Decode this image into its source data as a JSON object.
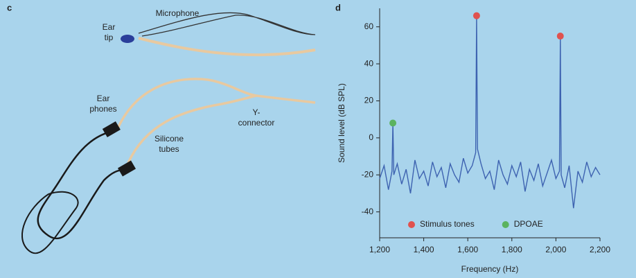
{
  "photo_panel": {
    "label": "c",
    "annotations": [
      {
        "lines": [
          "Ear",
          "tip"
        ]
      },
      {
        "lines": [
          "Microphone"
        ]
      },
      {
        "lines": [
          "Ear",
          "phones"
        ]
      },
      {
        "lines": [
          "Silicone",
          "tubes"
        ]
      },
      {
        "lines": [
          "Y-",
          "connector"
        ]
      }
    ]
  },
  "chart_data": {
    "type": "line",
    "panel_label": "d",
    "x_label": "Frequency (Hz)",
    "y_label": "Sound level (dB SPL)",
    "xlim": [
      1200,
      2200
    ],
    "ylim": [
      -54,
      70
    ],
    "xticks": [
      {
        "value": 1200,
        "label": "1,200"
      },
      {
        "value": 1400,
        "label": "1,400"
      },
      {
        "value": 1600,
        "label": "1,600"
      },
      {
        "value": 1800,
        "label": "1,800"
      },
      {
        "value": 2000,
        "label": "2,000"
      },
      {
        "value": 2200,
        "label": "2,200"
      }
    ],
    "yticks": [
      -40,
      -20,
      0,
      20,
      40,
      60
    ],
    "legend": "bottom",
    "series": [
      {
        "type": "line",
        "color": "#3d62b0",
        "x": [
          1200,
          1220,
          1240,
          1256,
          1260,
          1264,
          1280,
          1300,
          1320,
          1340,
          1360,
          1380,
          1400,
          1420,
          1440,
          1460,
          1480,
          1500,
          1520,
          1540,
          1560,
          1580,
          1600,
          1620,
          1636,
          1640,
          1644,
          1660,
          1680,
          1700,
          1720,
          1740,
          1760,
          1780,
          1800,
          1820,
          1840,
          1860,
          1880,
          1900,
          1920,
          1940,
          1960,
          1980,
          2000,
          2016,
          2020,
          2024,
          2040,
          2060,
          2080,
          2100,
          2120,
          2140,
          2160,
          2180,
          2200
        ],
        "values": [
          -22,
          -15,
          -28,
          -18,
          8,
          -20,
          -14,
          -25,
          -17,
          -30,
          -12,
          -22,
          -18,
          -26,
          -13,
          -21,
          -16,
          -27,
          -14,
          -20,
          -24,
          -11,
          -19,
          -15,
          -8,
          66,
          -6,
          -14,
          -22,
          -18,
          -28,
          -12,
          -20,
          -25,
          -15,
          -21,
          -13,
          -29,
          -17,
          -23,
          -14,
          -26,
          -19,
          -12,
          -22,
          -18,
          55,
          -20,
          -27,
          -15,
          -38,
          -18,
          -24,
          -13,
          -21,
          -16,
          -20
        ]
      },
      {
        "type": "scatter",
        "name": "Stimulus tones",
        "color": "#e0524f",
        "x": [
          1640,
          2020
        ],
        "values": [
          66,
          55
        ]
      },
      {
        "type": "scatter",
        "name": "DPOAE",
        "color": "#5bb35f",
        "x": [
          1260
        ],
        "values": [
          8
        ]
      }
    ]
  }
}
